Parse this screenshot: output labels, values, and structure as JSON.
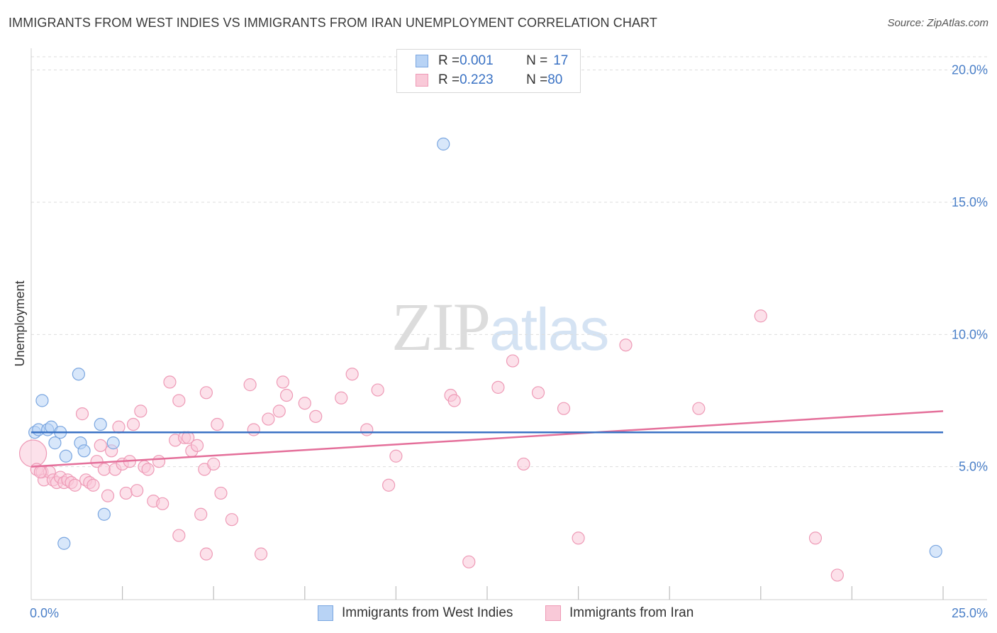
{
  "title": "IMMIGRANTS FROM WEST INDIES VS IMMIGRANTS FROM IRAN UNEMPLOYMENT CORRELATION CHART",
  "source": "Source: ZipAtlas.com",
  "watermark": {
    "zip": "ZIP",
    "atlas": "atlas"
  },
  "legend": {
    "rows": [
      {
        "r_label": "R = ",
        "r_value": "0.001",
        "n_label": "N = ",
        "n_value": "17"
      },
      {
        "r_label": "R = ",
        "r_value": "0.223",
        "n_label": "N = ",
        "n_value": "80"
      }
    ]
  },
  "colors": {
    "west_indies_fill": "#b8d3f5",
    "west_indies_stroke": "#7aa6e0",
    "west_indies_line": "#3a72c4",
    "iran_fill": "#f9c9d8",
    "iran_stroke": "#ee9ab6",
    "iran_line": "#e46f9a",
    "axis_text": "#4a7fc8",
    "grid": "#dddddd"
  },
  "chart_data": {
    "type": "scatter",
    "title": "IMMIGRANTS FROM WEST INDIES VS IMMIGRANTS FROM IRAN UNEMPLOYMENT CORRELATION CHART",
    "xlabel": "",
    "ylabel": "Unemployment",
    "xlim": [
      0,
      25
    ],
    "ylim": [
      0,
      20.5
    ],
    "x_tick_labels": [
      {
        "value": 0,
        "label": "0.0%"
      },
      {
        "value": 25,
        "label": "25.0%"
      }
    ],
    "y_tick_labels": [
      {
        "value": 5,
        "label": "5.0%"
      },
      {
        "value": 10,
        "label": "10.0%"
      },
      {
        "value": 15,
        "label": "15.0%"
      },
      {
        "value": 20,
        "label": "20.0%"
      }
    ],
    "series": [
      {
        "name": "Immigrants from West Indies",
        "color": "#b8d3f5",
        "points": [
          [
            0.1,
            6.3
          ],
          [
            0.2,
            6.4
          ],
          [
            0.3,
            7.5
          ],
          [
            0.45,
            6.4
          ],
          [
            0.55,
            6.5
          ],
          [
            0.65,
            5.9
          ],
          [
            0.8,
            6.3
          ],
          [
            0.95,
            5.4
          ],
          [
            0.9,
            2.1
          ],
          [
            1.3,
            8.5
          ],
          [
            1.35,
            5.9
          ],
          [
            1.45,
            5.6
          ],
          [
            1.9,
            6.6
          ],
          [
            2.0,
            3.2
          ],
          [
            2.25,
            5.9
          ],
          [
            11.3,
            17.2
          ],
          [
            24.8,
            1.8
          ]
        ],
        "trend": {
          "x": [
            0,
            25
          ],
          "y": [
            6.3,
            6.3
          ]
        }
      },
      {
        "name": "Immigrants from Iran",
        "color": "#f9c9d8",
        "points": [
          [
            0.05,
            5.5
          ],
          [
            0.15,
            4.9
          ],
          [
            0.3,
            4.8
          ],
          [
            0.35,
            4.5
          ],
          [
            0.5,
            4.8
          ],
          [
            0.6,
            4.5
          ],
          [
            0.7,
            4.4
          ],
          [
            0.8,
            4.6
          ],
          [
            0.9,
            4.4
          ],
          [
            1.0,
            4.5
          ],
          [
            1.1,
            4.4
          ],
          [
            1.2,
            4.3
          ],
          [
            1.4,
            7.0
          ],
          [
            1.5,
            4.5
          ],
          [
            1.6,
            4.4
          ],
          [
            1.7,
            4.3
          ],
          [
            1.8,
            5.2
          ],
          [
            1.9,
            5.8
          ],
          [
            2.0,
            4.9
          ],
          [
            2.1,
            3.9
          ],
          [
            2.2,
            5.6
          ],
          [
            2.3,
            4.9
          ],
          [
            2.4,
            6.5
          ],
          [
            2.5,
            5.1
          ],
          [
            2.6,
            4.0
          ],
          [
            2.7,
            5.2
          ],
          [
            2.8,
            6.6
          ],
          [
            2.9,
            4.1
          ],
          [
            3.0,
            7.1
          ],
          [
            3.1,
            5.0
          ],
          [
            3.2,
            4.9
          ],
          [
            3.35,
            3.7
          ],
          [
            3.5,
            5.2
          ],
          [
            3.6,
            3.6
          ],
          [
            3.8,
            8.2
          ],
          [
            3.95,
            6.0
          ],
          [
            4.05,
            7.5
          ],
          [
            4.2,
            6.1
          ],
          [
            4.3,
            6.1
          ],
          [
            4.4,
            5.6
          ],
          [
            4.55,
            5.8
          ],
          [
            4.65,
            3.2
          ],
          [
            4.75,
            4.9
          ],
          [
            4.8,
            7.8
          ],
          [
            5.0,
            5.1
          ],
          [
            5.1,
            6.6
          ],
          [
            5.2,
            4.0
          ],
          [
            4.05,
            2.4
          ],
          [
            4.8,
            1.7
          ],
          [
            5.5,
            3.0
          ],
          [
            6.0,
            8.1
          ],
          [
            6.1,
            6.4
          ],
          [
            6.3,
            1.7
          ],
          [
            6.5,
            6.8
          ],
          [
            6.8,
            7.1
          ],
          [
            6.9,
            8.2
          ],
          [
            7.0,
            7.7
          ],
          [
            7.5,
            7.4
          ],
          [
            7.8,
            6.9
          ],
          [
            8.5,
            7.6
          ],
          [
            8.8,
            8.5
          ],
          [
            9.2,
            6.4
          ],
          [
            9.5,
            7.9
          ],
          [
            9.8,
            4.3
          ],
          [
            10.0,
            5.4
          ],
          [
            11.5,
            7.7
          ],
          [
            11.6,
            7.5
          ],
          [
            12.0,
            1.4
          ],
          [
            12.8,
            8.0
          ],
          [
            13.2,
            9.0
          ],
          [
            13.5,
            5.1
          ],
          [
            13.9,
            7.8
          ],
          [
            14.6,
            7.2
          ],
          [
            15.0,
            2.3
          ],
          [
            16.3,
            9.6
          ],
          [
            18.3,
            7.2
          ],
          [
            20.0,
            10.7
          ],
          [
            21.5,
            2.3
          ],
          [
            22.1,
            0.9
          ],
          [
            0.25,
            4.8
          ]
        ],
        "trend": {
          "x": [
            0,
            25
          ],
          "y": [
            5.0,
            7.1
          ]
        }
      }
    ],
    "legend_position": "top-center",
    "grid": true
  }
}
